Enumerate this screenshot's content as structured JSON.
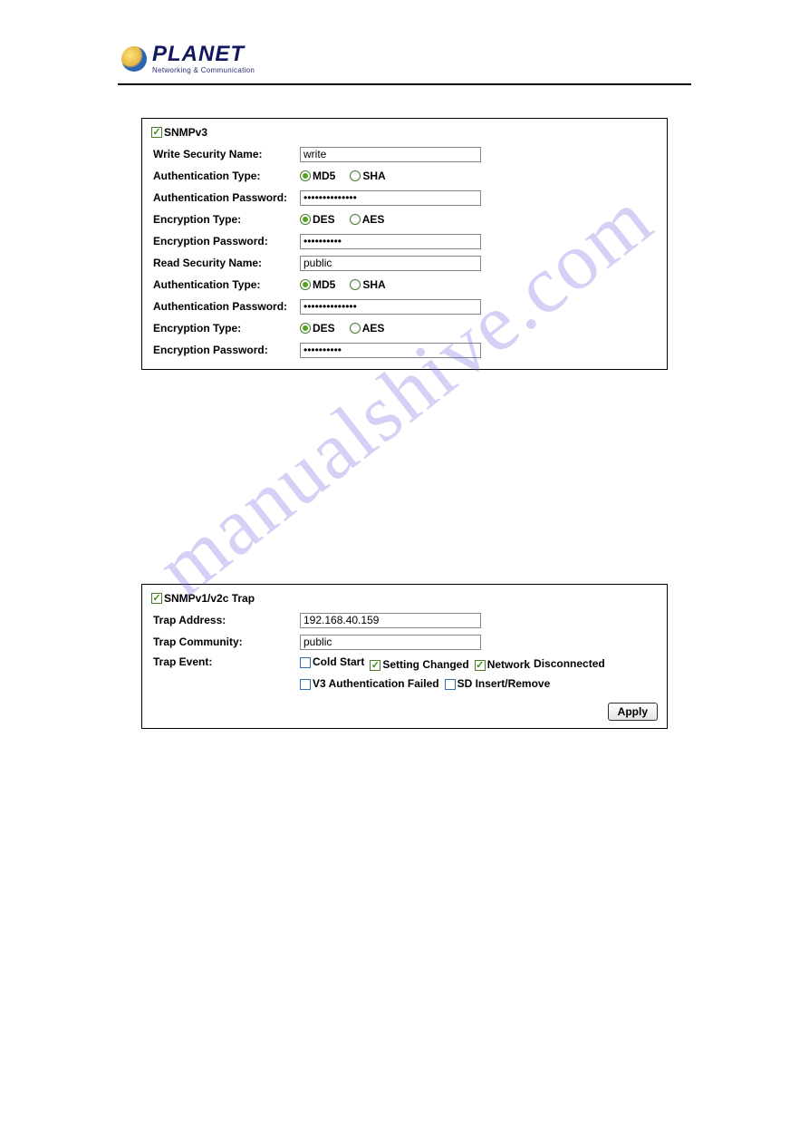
{
  "logo": {
    "brand": "PLANET",
    "tagline": "Networking & Communication"
  },
  "watermark": "manualshive.com",
  "snmpv3": {
    "title": "SNMPv3",
    "checked": true,
    "rows": [
      {
        "label": "Write Security Name:",
        "type": "text",
        "value": "write"
      },
      {
        "label": "Authentication Type:",
        "type": "radio",
        "opts": [
          "MD5",
          "SHA"
        ],
        "selected": "MD5"
      },
      {
        "label": "Authentication Password:",
        "type": "password",
        "value": "••••••••••••••"
      },
      {
        "label": "Encryption Type:",
        "type": "radio",
        "opts": [
          "DES",
          "AES"
        ],
        "selected": "DES"
      },
      {
        "label": "Encryption Password:",
        "type": "password",
        "value": "••••••••••"
      },
      {
        "label": "Read Security Name:",
        "type": "text",
        "value": "public"
      },
      {
        "label": "Authentication Type:",
        "type": "radio",
        "opts": [
          "MD5",
          "SHA"
        ],
        "selected": "MD5"
      },
      {
        "label": "Authentication Password:",
        "type": "password",
        "value": "••••••••••••••"
      },
      {
        "label": "Encryption Type:",
        "type": "radio",
        "opts": [
          "DES",
          "AES"
        ],
        "selected": "DES"
      },
      {
        "label": "Encryption Password:",
        "type": "password",
        "value": "••••••••••"
      }
    ]
  },
  "trap": {
    "title": "SNMPv1/v2c Trap",
    "checked": true,
    "trap_address_label": "Trap Address:",
    "trap_address_value": "192.168.40.159",
    "trap_community_label": "Trap Community:",
    "trap_community_value": "public",
    "trap_event_label": "Trap Event:",
    "events_line1": [
      {
        "label": "Cold Start",
        "checked": false
      },
      {
        "label": "Setting Changed",
        "checked": true
      },
      {
        "label": "Network Disconnected",
        "checked": true,
        "wrap": true
      }
    ],
    "events_line2": [
      {
        "label": "V3 Authentication Failed",
        "checked": false
      },
      {
        "label": "SD Insert/Remove",
        "checked": false
      }
    ],
    "apply_label": "Apply"
  },
  "colors": {
    "border": "#000000",
    "input_border": "#7b8894",
    "check_green": "#3f8f18",
    "radio_green": "#53a41f",
    "brand_navy": "#13175e",
    "watermark": "#6b5ee0"
  }
}
